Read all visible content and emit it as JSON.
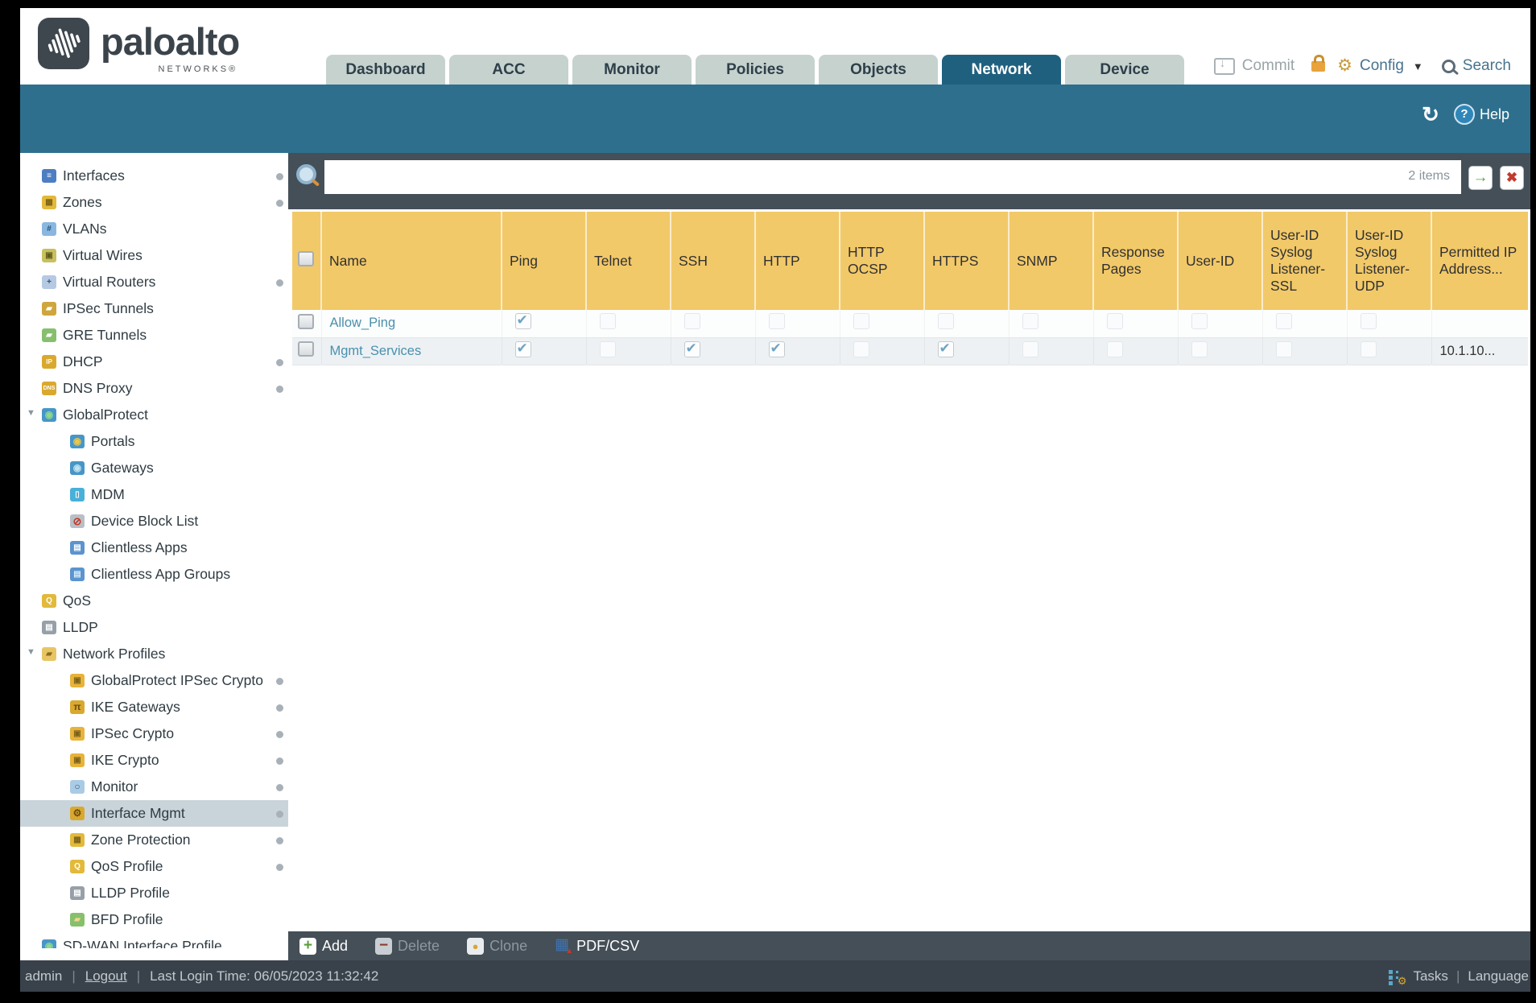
{
  "brand": {
    "name": "paloalto",
    "sub": "NETWORKS®"
  },
  "nav": {
    "tabs": [
      {
        "label": "Dashboard",
        "active": false
      },
      {
        "label": "ACC",
        "active": false
      },
      {
        "label": "Monitor",
        "active": false
      },
      {
        "label": "Policies",
        "active": false
      },
      {
        "label": "Objects",
        "active": false
      },
      {
        "label": "Network",
        "active": true
      },
      {
        "label": "Device",
        "active": false
      }
    ],
    "actions": {
      "commit": "Commit",
      "config": "Config",
      "search": "Search"
    }
  },
  "band": {
    "help": "Help"
  },
  "sidebar": {
    "items": [
      {
        "label": "Interfaces",
        "icon": "interfaces-icon",
        "level": 0,
        "dot": true
      },
      {
        "label": "Zones",
        "icon": "zones-icon",
        "level": 0,
        "dot": true
      },
      {
        "label": "VLANs",
        "icon": "vlans-icon",
        "level": 0,
        "dot": false
      },
      {
        "label": "Virtual Wires",
        "icon": "virtual-wires-icon",
        "level": 0,
        "dot": false
      },
      {
        "label": "Virtual Routers",
        "icon": "virtual-routers-icon",
        "level": 0,
        "dot": true
      },
      {
        "label": "IPSec Tunnels",
        "icon": "ipsec-tunnels-icon",
        "level": 0,
        "dot": false
      },
      {
        "label": "GRE Tunnels",
        "icon": "gre-tunnels-icon",
        "level": 0,
        "dot": false
      },
      {
        "label": "DHCP",
        "icon": "dhcp-icon",
        "level": 0,
        "dot": true
      },
      {
        "label": "DNS Proxy",
        "icon": "dns-proxy-icon",
        "level": 0,
        "dot": true
      },
      {
        "label": "GlobalProtect",
        "icon": "globalprotect-icon",
        "level": 0,
        "expandable": true
      },
      {
        "label": "Portals",
        "icon": "portals-icon",
        "level": 1
      },
      {
        "label": "Gateways",
        "icon": "gateways-icon",
        "level": 1
      },
      {
        "label": "MDM",
        "icon": "mdm-icon",
        "level": 1
      },
      {
        "label": "Device Block List",
        "icon": "device-block-list-icon",
        "level": 1
      },
      {
        "label": "Clientless Apps",
        "icon": "clientless-apps-icon",
        "level": 1
      },
      {
        "label": "Clientless App Groups",
        "icon": "clientless-app-groups-icon",
        "level": 1
      },
      {
        "label": "QoS",
        "icon": "qos-icon",
        "level": 0
      },
      {
        "label": "LLDP",
        "icon": "lldp-icon",
        "level": 0
      },
      {
        "label": "Network Profiles",
        "icon": "network-profiles-icon",
        "level": 0,
        "expandable": true
      },
      {
        "label": "GlobalProtect IPSec Crypto",
        "icon": "lock-icon",
        "level": 1,
        "dot": true
      },
      {
        "label": "IKE Gateways",
        "icon": "ike-gateways-icon",
        "level": 1,
        "dot": true
      },
      {
        "label": "IPSec Crypto",
        "icon": "lock-icon",
        "level": 1,
        "dot": true
      },
      {
        "label": "IKE Crypto",
        "icon": "lock-icon",
        "level": 1,
        "dot": true
      },
      {
        "label": "Monitor",
        "icon": "monitor-icon",
        "level": 1,
        "dot": true
      },
      {
        "label": "Interface Mgmt",
        "icon": "interface-mgmt-icon",
        "level": 1,
        "dot": true,
        "selected": true
      },
      {
        "label": "Zone Protection",
        "icon": "zone-protection-icon",
        "level": 1,
        "dot": true
      },
      {
        "label": "QoS Profile",
        "icon": "qos-profile-icon",
        "level": 1,
        "dot": true
      },
      {
        "label": "LLDP Profile",
        "icon": "lldp-profile-icon",
        "level": 1
      },
      {
        "label": "BFD Profile",
        "icon": "bfd-profile-icon",
        "level": 1
      },
      {
        "label": "SD-WAN Interface Profile",
        "icon": "sdwan-interface-profile-icon",
        "level": 0
      }
    ]
  },
  "search": {
    "value": "",
    "items_count": "2 items"
  },
  "table": {
    "columns": [
      "Name",
      "Ping",
      "Telnet",
      "SSH",
      "HTTP",
      "HTTP OCSP",
      "HTTPS",
      "SNMP",
      "Response Pages",
      "User-ID",
      "User-ID Syslog Listener-SSL",
      "User-ID Syslog Listener-UDP",
      "Permitted IP Address..."
    ],
    "rows": [
      {
        "name": "Allow_Ping",
        "checks": [
          true,
          false,
          false,
          false,
          false,
          false,
          false,
          false,
          false,
          false,
          false
        ],
        "permitted_ip": ""
      },
      {
        "name": "Mgmt_Services",
        "checks": [
          true,
          false,
          true,
          true,
          false,
          true,
          false,
          false,
          false,
          false,
          false
        ],
        "permitted_ip": "10.1.10..."
      }
    ]
  },
  "toolbar": {
    "add": "Add",
    "delete": "Delete",
    "clone": "Clone",
    "pdfcsv": "PDF/CSV"
  },
  "footer": {
    "user": "admin",
    "divider": "|",
    "logout": "Logout",
    "last_login": "Last Login Time: 06/05/2023 11:32:42",
    "tasks": "Tasks",
    "language": "Language"
  },
  "colors": {
    "accent_teal": "#2e6f8e",
    "active_tab": "#20607f",
    "header_yellow": "#f2c969",
    "toolbar_dark": "#454f58",
    "link_blue": "#4a90ad"
  }
}
